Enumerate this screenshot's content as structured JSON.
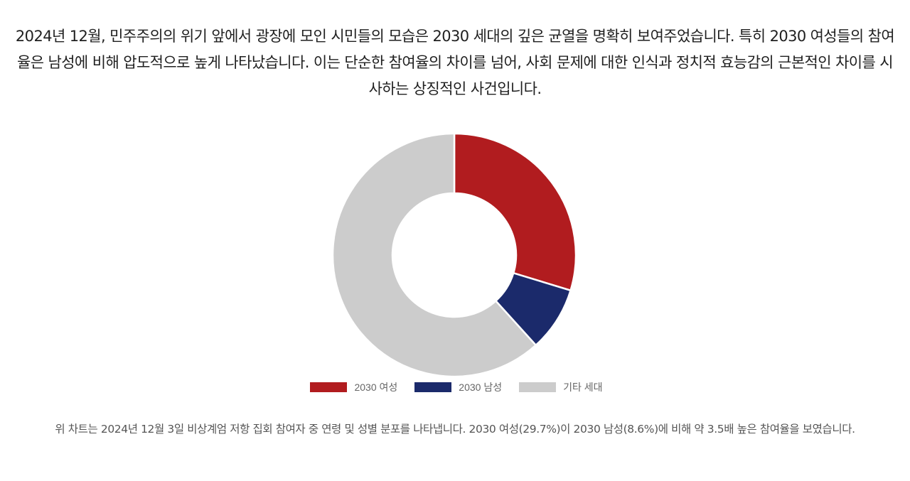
{
  "intro": {
    "paragraph": "2024년 12월, 민주주의의 위기 앞에서 광장에 모인 시민들의 모습은 2030 세대의 깊은 균열을 명확히 보여주었습니다. 특히 2030 여성들의 참여율은 남성에 비해 압도적으로 높게 나타났습니다. 이는 단순한 참여율의 차이를 넘어, 사회 문제에 대한 인식과 정치적 효능감의 근본적인 차이를 시사하는 상징적인 사건입니다."
  },
  "chart_data": {
    "type": "pie",
    "variant": "donut",
    "categories": [
      "2030 여성",
      "2030 남성",
      "기타 세대"
    ],
    "values": [
      29.7,
      8.6,
      61.7
    ],
    "colors": [
      "#b11c1f",
      "#1b2a6b",
      "#cccccc"
    ],
    "legend_position": "bottom",
    "title": ""
  },
  "caption": {
    "text": "위 차트는 2024년 12월 3일 비상계엄 저항 집회 참여자 중 연령 및 성별 분포를 나타냅니다. 2030 여성(29.7%)이 2030 남성(8.6%)에 비해 약 3.5배 높은 참여율을 보였습니다."
  }
}
